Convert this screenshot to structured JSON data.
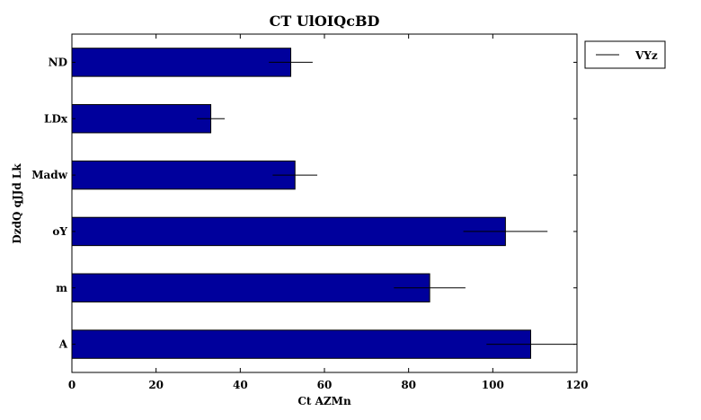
{
  "chart_data": {
    "type": "bar",
    "orientation": "horizontal",
    "title": "CT UlOIQcBD",
    "xlabel": "Ct AZMn",
    "ylabel": "DzdQ qJJd Lk",
    "categories": [
      "A",
      "m",
      "oY",
      "Madw",
      "LDx",
      "ND"
    ],
    "series": [
      {
        "name": "VYz",
        "values": [
          109,
          85,
          103,
          53,
          33,
          52
        ],
        "errors": [
          10.5,
          8.5,
          10,
          5.3,
          3.3,
          5.2
        ],
        "color": "#00009c"
      }
    ],
    "xlim": [
      0,
      120
    ],
    "xticks": [
      0,
      20,
      40,
      60,
      80,
      100,
      120
    ],
    "grid": false,
    "legend": {
      "position": "outside-top-right",
      "entries": [
        "VYz"
      ]
    }
  }
}
